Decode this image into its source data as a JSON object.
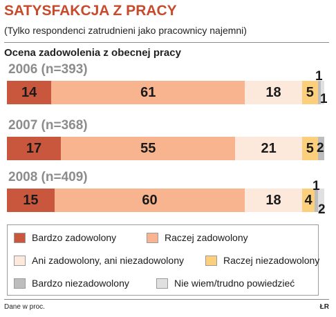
{
  "header": {
    "title": "SATYSFAKCJA Z PRACY",
    "subtitle": "(Tylko respondenci zatrudnieni jako pracownicy najemni)"
  },
  "chart_data": {
    "type": "bar",
    "stacked": true,
    "orientation": "horizontal",
    "title": "Ocena zadowolenia z obecnej pracy",
    "categories": [
      "2006 (n=393)",
      "2007 (n=368)",
      "2008 (n=409)"
    ],
    "series": [
      {
        "name": "Bardzo zadowolony",
        "color": "#c9573d",
        "values": [
          14,
          17,
          15
        ]
      },
      {
        "name": "Raczej zadowolony",
        "color": "#f7b48e",
        "values": [
          61,
          55,
          60
        ]
      },
      {
        "name": "Ani zadowolony, ani niezadowolony",
        "color": "#fde9dc",
        "values": [
          18,
          21,
          18
        ]
      },
      {
        "name": "Raczej niezadowolony",
        "color": "#fbcf7b",
        "values": [
          5,
          5,
          4
        ]
      },
      {
        "name": "Bardzo niezadowolony",
        "color": "#bdbdbd",
        "values": [
          1,
          2,
          1
        ]
      },
      {
        "name": "Nie wiem/trudno powiedzieć",
        "color": "#e0e0e0",
        "values": [
          1,
          0,
          2
        ]
      }
    ],
    "data_labels": [
      [
        "14",
        "61",
        "18",
        "5",
        "1",
        "1"
      ],
      [
        "17",
        "55",
        "21",
        "5",
        "2",
        ""
      ],
      [
        "15",
        "60",
        "18",
        "4",
        "1",
        "2"
      ]
    ],
    "legend_position": "bottom",
    "grid": false
  },
  "footer": {
    "note": "Dane w proc.",
    "credit": "ŁR"
  }
}
